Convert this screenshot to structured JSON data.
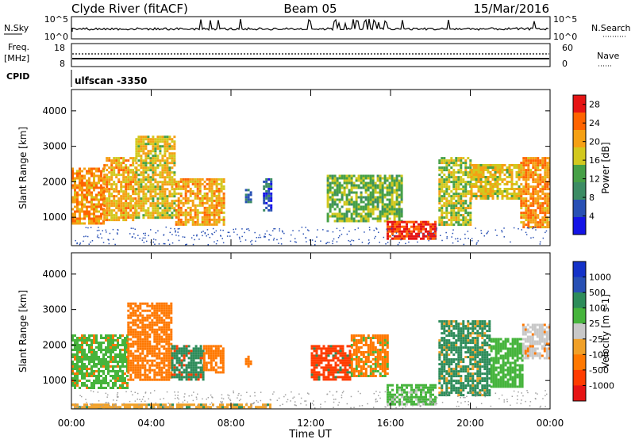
{
  "header": {
    "station": "Clyde River (fitACF)",
    "beam": "Beam 05",
    "date": "15/Mar/2016"
  },
  "top_panels": {
    "nsky_label": "N.Sky",
    "nsky_ticks": [
      "10^5",
      "10^0"
    ],
    "nsearch_label": "N.Search",
    "nsearch_ticks": [
      "10^5",
      "10^0"
    ],
    "freq_label": "Freq.",
    "freq_unit": "[MHz]",
    "freq_ticks": [
      "18",
      "8"
    ],
    "nave_label": "Nave",
    "nave_ticks": [
      "60",
      "0"
    ],
    "cpid_label": "CPID",
    "cpid_value": "ulfscan -3350"
  },
  "colors": {
    "power_scale": [
      "#1414e6",
      "#2850b4",
      "#3c8c64",
      "#46a046",
      "#d2c81e",
      "#f5a014",
      "#ff6400",
      "#e61414"
    ],
    "velocity_scale": [
      "#e61414",
      "#ff3c00",
      "#ff7800",
      "#f0a028",
      "#c8c8c8",
      "#46b43c",
      "#2d8c5a",
      "#2850b4",
      "#1432c8"
    ]
  },
  "chart_data": [
    {
      "type": "heatmap",
      "name": "power",
      "ylabel": "Slant Range [km]",
      "xticks": [
        "00:00",
        "04:00",
        "08:00",
        "12:00",
        "16:00",
        "20:00",
        "00:00"
      ],
      "yticks": [
        "1000",
        "2000",
        "3000",
        "4000"
      ],
      "xlim": [
        0,
        24
      ],
      "ylim": [
        200,
        4600
      ],
      "colorbar_label": "Power [dB]",
      "colorbar_ticks": [
        "4",
        "8",
        "12",
        "16",
        "20",
        "24",
        "28"
      ],
      "colorbar_range": [
        0,
        30
      ],
      "regions": [
        {
          "t0": 0.0,
          "t1": 1.6,
          "r0": 800,
          "r1": 2400,
          "value": 22
        },
        {
          "t0": 1.6,
          "t1": 3.2,
          "r0": 900,
          "r1": 2700,
          "value": 20
        },
        {
          "t0": 3.2,
          "t1": 5.2,
          "r0": 1000,
          "r1": 3300,
          "value": 18
        },
        {
          "t0": 5.2,
          "t1": 7.6,
          "r0": 800,
          "r1": 2100,
          "value": 20
        },
        {
          "t0": 8.7,
          "t1": 9.0,
          "r0": 1400,
          "r1": 1800,
          "value": 8
        },
        {
          "t0": 9.6,
          "t1": 10.0,
          "r0": 1200,
          "r1": 2100,
          "value": 6
        },
        {
          "t0": 12.8,
          "t1": 16.6,
          "r0": 900,
          "r1": 2200,
          "value": 14
        },
        {
          "t0": 15.8,
          "t1": 18.3,
          "r0": 400,
          "r1": 900,
          "value": 27
        },
        {
          "t0": 18.4,
          "t1": 20.0,
          "r0": 800,
          "r1": 2700,
          "value": 16
        },
        {
          "t0": 20.0,
          "t1": 22.5,
          "r0": 1500,
          "r1": 2500,
          "value": 18
        },
        {
          "t0": 22.5,
          "t1": 24.0,
          "r0": 700,
          "r1": 2700,
          "value": 22
        }
      ]
    },
    {
      "type": "heatmap",
      "name": "velocity",
      "ylabel": "Slant Range [km]",
      "xlabel": "Time UT",
      "xticks": [
        "00:00",
        "04:00",
        "08:00",
        "12:00",
        "16:00",
        "20:00",
        "00:00"
      ],
      "yticks": [
        "1000",
        "2000",
        "3000",
        "4000"
      ],
      "xlim": [
        0,
        24
      ],
      "ylim": [
        200,
        4600
      ],
      "colorbar_label": "Velocity [m s-1]",
      "colorbar_ticks": [
        "1000",
        "500",
        "100",
        "25",
        "-25",
        "-100",
        "-500",
        "-1000"
      ],
      "regions": [
        {
          "t0": 0.0,
          "t1": 2.8,
          "r0": 800,
          "r1": 2300,
          "value": 100
        },
        {
          "t0": 2.8,
          "t1": 5.0,
          "r0": 1000,
          "r1": 3200,
          "value": -100
        },
        {
          "t0": 5.0,
          "t1": 6.6,
          "r0": 1000,
          "r1": 2000,
          "value": 500
        },
        {
          "t0": 6.6,
          "t1": 7.6,
          "r0": 1200,
          "r1": 2000,
          "value": -100
        },
        {
          "t0": 8.7,
          "t1": 9.0,
          "r0": 1400,
          "r1": 1700,
          "value": -100
        },
        {
          "t0": 12.0,
          "t1": 14.0,
          "r0": 1000,
          "r1": 2000,
          "value": -500
        },
        {
          "t0": 14.0,
          "t1": 15.8,
          "r0": 1100,
          "r1": 2300,
          "value": -100
        },
        {
          "t0": 15.8,
          "t1": 18.2,
          "r0": 300,
          "r1": 900,
          "value": 100
        },
        {
          "t0": 18.4,
          "t1": 21.0,
          "r0": 600,
          "r1": 2700,
          "value": 500
        },
        {
          "t0": 21.0,
          "t1": 22.6,
          "r0": 800,
          "r1": 2200,
          "value": 100
        },
        {
          "t0": 22.6,
          "t1": 24.0,
          "r0": 1600,
          "r1": 2600,
          "value": 25
        },
        {
          "t0": 0.0,
          "t1": 10.0,
          "r0": 200,
          "r1": 350,
          "value": -25
        }
      ]
    }
  ]
}
